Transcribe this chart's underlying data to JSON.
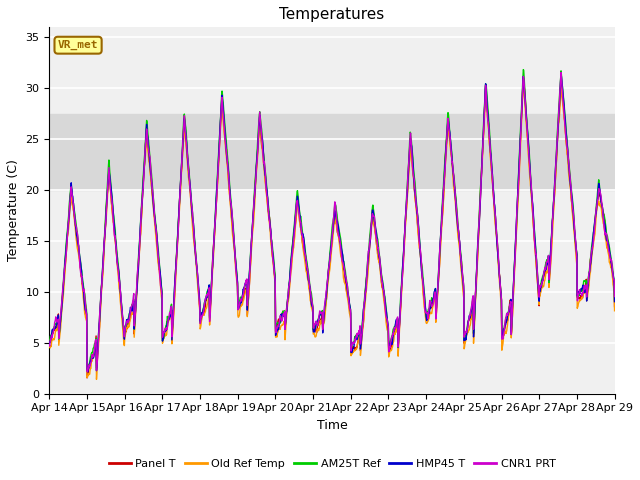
{
  "title": "Temperatures",
  "xlabel": "Time",
  "ylabel": "Temperature (C)",
  "ylim": [
    0,
    36
  ],
  "yticks": [
    0,
    5,
    10,
    15,
    20,
    25,
    30,
    35
  ],
  "colors": {
    "Panel T": "#cc0000",
    "Old Ref Temp": "#ff9900",
    "AM25T Ref": "#00cc00",
    "HMP45 T": "#0000cc",
    "CNR1 PRT": "#cc00cc"
  },
  "vr_met_label": "VR_met",
  "vr_met_bg": "#ffff99",
  "vr_met_border": "#996600",
  "shaded_band": [
    20,
    27.5
  ],
  "legend_entries": [
    "Panel T",
    "Old Ref Temp",
    "AM25T Ref",
    "HMP45 T",
    "CNR1 PRT"
  ],
  "xtick_labels": [
    "Apr 14",
    "Apr 15",
    "Apr 16",
    "Apr 17",
    "Apr 18",
    "Apr 19",
    "Apr 20",
    "Apr 21",
    "Apr 22",
    "Apr 23",
    "Apr 24",
    "Apr 25",
    "Apr 26",
    "Apr 27",
    "Apr 28",
    "Apr 29"
  ],
  "linewidth": 1.0,
  "n_points": 1500,
  "day_highs": [
    20,
    22,
    26,
    27,
    29,
    27,
    19,
    18,
    18,
    25,
    27,
    30,
    31,
    31,
    20
  ],
  "day_lows": [
    5,
    2,
    6,
    5,
    7,
    8,
    6,
    6,
    4,
    4,
    7,
    5,
    5,
    10,
    9
  ],
  "fig_bg": "#ffffff",
  "plot_bg": "#f0f0f0",
  "grid_color": "#e0e0e0",
  "title_fontsize": 11,
  "label_fontsize": 9,
  "tick_fontsize": 8,
  "legend_fontsize": 8
}
